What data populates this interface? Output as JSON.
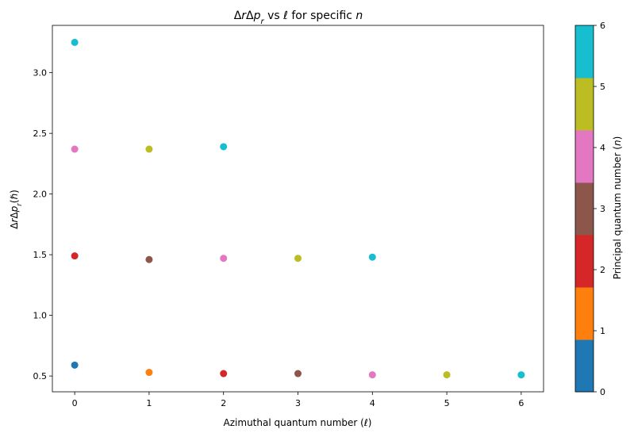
{
  "chart_data": {
    "type": "scatter",
    "title_parts": [
      "Δ",
      "r",
      "Δ",
      "p",
      "r",
      " vs ℓ for specific ",
      "n"
    ],
    "xlabel": "Azimuthal quantum number (ℓ)",
    "ylabel_parts": [
      "Δ",
      "r",
      "Δ",
      "p",
      "r",
      "(ℏ)"
    ],
    "xlim": [
      -0.3,
      6.3
    ],
    "ylim": [
      0.37,
      3.39
    ],
    "xticks": [
      0,
      1,
      2,
      3,
      4,
      5,
      6
    ],
    "yticks": [
      0.5,
      1.0,
      1.5,
      2.0,
      2.5,
      3.0
    ],
    "ytick_labels": [
      "0.5",
      "1.0",
      "1.5",
      "2.0",
      "2.5",
      "3.0"
    ],
    "grid": false,
    "points": [
      {
        "l": 0,
        "n": 0,
        "value": 0.59
      },
      {
        "l": 0,
        "n": 2,
        "value": 1.49
      },
      {
        "l": 0,
        "n": 4,
        "value": 2.37
      },
      {
        "l": 0,
        "n": 6,
        "value": 3.25
      },
      {
        "l": 1,
        "n": 1,
        "value": 0.53
      },
      {
        "l": 1,
        "n": 3,
        "value": 1.46
      },
      {
        "l": 1,
        "n": 5,
        "value": 2.37
      },
      {
        "l": 2,
        "n": 2,
        "value": 0.52
      },
      {
        "l": 2,
        "n": 4,
        "value": 1.47
      },
      {
        "l": 2,
        "n": 6,
        "value": 2.39
      },
      {
        "l": 3,
        "n": 3,
        "value": 0.52
      },
      {
        "l": 3,
        "n": 5,
        "value": 1.47
      },
      {
        "l": 4,
        "n": 4,
        "value": 0.51
      },
      {
        "l": 4,
        "n": 6,
        "value": 1.48
      },
      {
        "l": 5,
        "n": 5,
        "value": 0.51
      },
      {
        "l": 6,
        "n": 6,
        "value": 0.51
      }
    ],
    "colorbar": {
      "label_parts": [
        "Principal quantum number (",
        "n",
        ")"
      ],
      "range": [
        0,
        6
      ],
      "ticks": [
        0,
        1,
        2,
        3,
        4,
        5,
        6
      ],
      "colors": [
        "#1f77b4",
        "#ff7f0e",
        "#d62728",
        "#8c564b",
        "#e377c2",
        "#bcbd22",
        "#17becf"
      ]
    }
  }
}
